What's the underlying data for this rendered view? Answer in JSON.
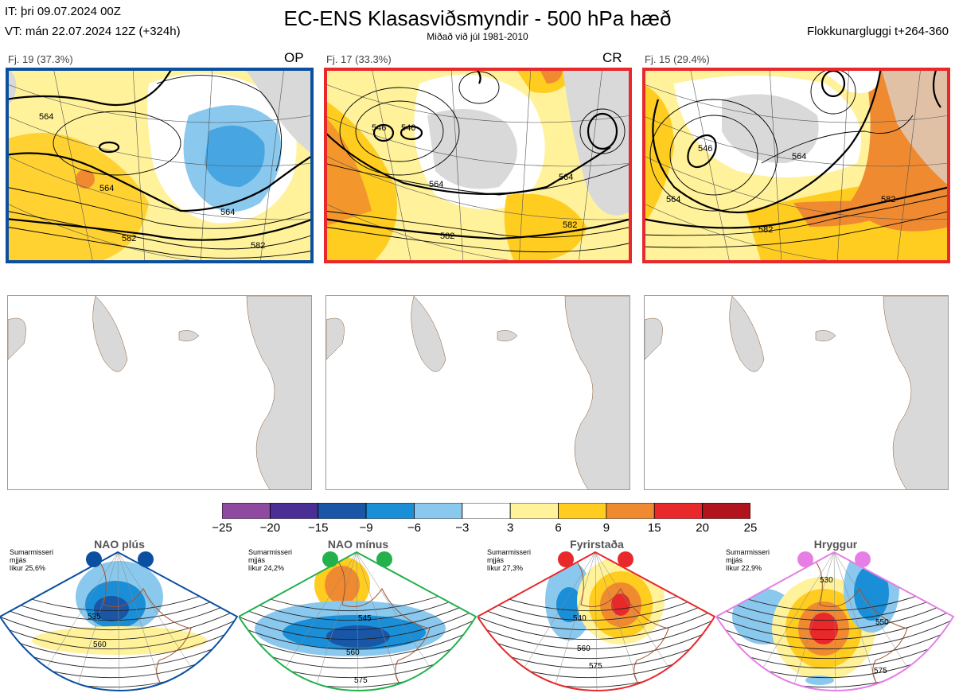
{
  "header": {
    "it_line": "IT: þri 09.07.2024 00Z",
    "vt_line": "VT: mán 22.07.2024 12Z  (+324h)",
    "title": "EC-ENS Klasasviðsmyndir - 500 hPa hæð",
    "subtitle": "Miðað við júl 1981-2010",
    "window": "Flokkunargluggi t+264-360"
  },
  "clusters": [
    {
      "label": "Fj. 19 (37.3%)",
      "code": "OP",
      "frame_color": "#0a4fa0",
      "contour_labels": [
        "564",
        "564",
        "564",
        "582",
        "582"
      ]
    },
    {
      "label": "Fj. 17 (33.3%)",
      "code": "CR",
      "frame_color": "#e8282b",
      "contour_labels": [
        "546",
        "546",
        "564",
        "564",
        "582",
        "582"
      ]
    },
    {
      "label": "Fj. 15 (29.4%)",
      "code": "",
      "frame_color": "#e8282b",
      "contour_labels": [
        "546",
        "564",
        "564",
        "582",
        "582"
      ]
    }
  ],
  "colorbar": {
    "ticks": [
      "−25",
      "−20",
      "−15",
      "−9",
      "−6",
      "−3",
      "3",
      "6",
      "9",
      "15",
      "20",
      "25"
    ],
    "colors": [
      "#8e4aa0",
      "#4a2e93",
      "#1a56a6",
      "#1a8fd8",
      "#8ac8ee",
      "#ffffff",
      "#fff29a",
      "#ffcd20",
      "#f08a30",
      "#e8282b",
      "#b0141c"
    ]
  },
  "regimes": [
    {
      "name": "NAO plús",
      "note": [
        "Sumarmisseri",
        "mjjás",
        "líkur 25,6%"
      ],
      "color": "#0a4fa0",
      "contours": [
        "535",
        "560"
      ]
    },
    {
      "name": "NAO mínus",
      "note": [
        "Sumarmisseri",
        "mjjás",
        "líkur 24,2%"
      ],
      "color": "#22b14c",
      "contours": [
        "545",
        "560",
        "575"
      ]
    },
    {
      "name": "Fyrirstaða",
      "note": [
        "Sumarmisseri",
        "mjjás",
        "líkur 27,3%"
      ],
      "color": "#e8282b",
      "contours": [
        "540",
        "560",
        "575"
      ]
    },
    {
      "name": "Hryggur",
      "note": [
        "Sumarmisseri",
        "mjjás",
        "líkur 22,9%"
      ],
      "color": "#e67ee6",
      "contours": [
        "530",
        "550",
        "575"
      ]
    }
  ]
}
